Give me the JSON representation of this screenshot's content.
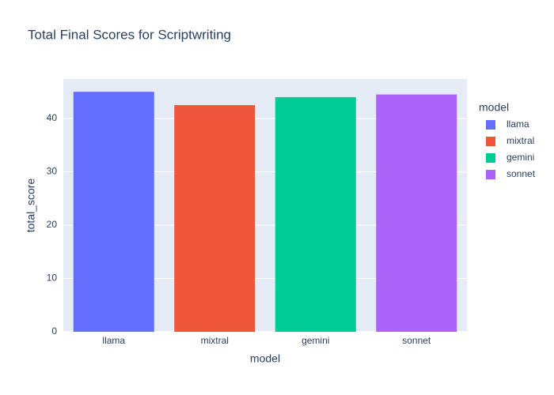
{
  "chart_data": {
    "type": "bar",
    "title": "Total Final Scores for Scriptwriting",
    "x_label": "model",
    "y_label": "total_score",
    "legend_title": "model",
    "categories": [
      "llama",
      "mixtral",
      "gemini",
      "sonnet"
    ],
    "series": [
      {
        "name": "llama",
        "color": "#636efa",
        "values": [
          45,
          null,
          null,
          null
        ]
      },
      {
        "name": "mixtral",
        "color": "#ef553b",
        "values": [
          null,
          42.5,
          null,
          null
        ]
      },
      {
        "name": "gemini",
        "color": "#00cc96",
        "values": [
          null,
          null,
          44,
          null
        ]
      },
      {
        "name": "sonnet",
        "color": "#ab63fa",
        "values": [
          null,
          null,
          null,
          44.5
        ]
      }
    ],
    "ylim": [
      0,
      47.4
    ],
    "yticks": [
      0,
      10,
      20,
      30,
      40
    ],
    "grid": true
  }
}
